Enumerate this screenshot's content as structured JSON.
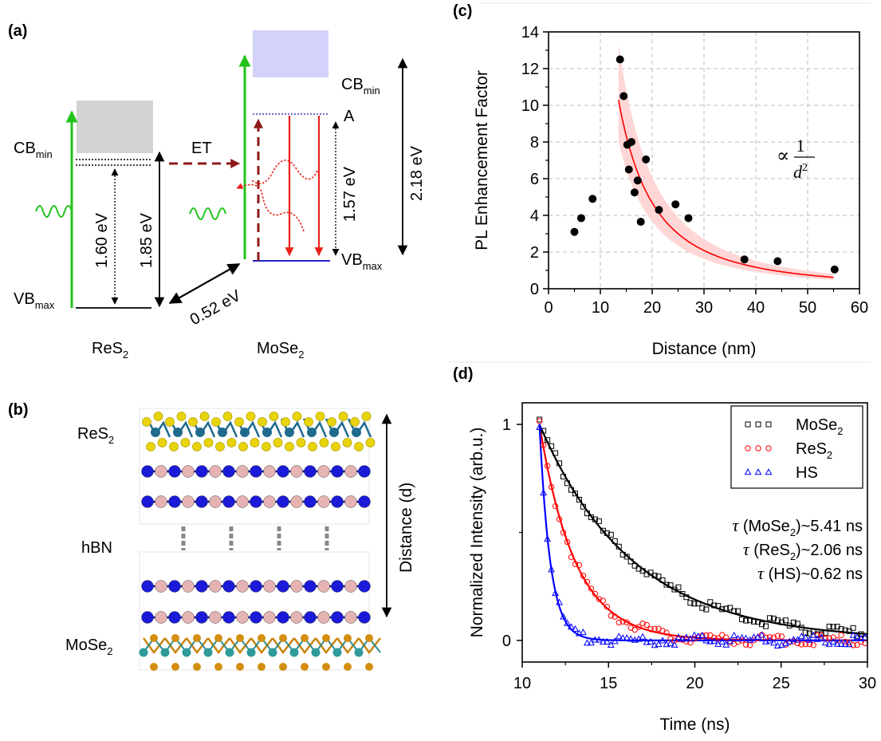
{
  "panels": {
    "a": {
      "label": "(a)",
      "cb_min_left": "CB",
      "cb_min_left_sub": "min",
      "vb_max_left": "VB",
      "vb_max_left_sub": "max",
      "et": "ET",
      "e_160": "1.60 eV",
      "e_185": "1.85 eV",
      "e_052": "0.52 eV",
      "e_157": "1.57 eV",
      "e_218": "2.18 eV",
      "a_state": "A",
      "cb_min_right": "CB",
      "cb_min_right_sub": "min",
      "vb_max_right": "VB",
      "vb_max_right_sub": "max",
      "res2_main": "ReS",
      "res2_sub": "2",
      "mose2_main": "MoSe",
      "mose2_sub": "2"
    },
    "b": {
      "label": "(b)",
      "res2_main": "ReS",
      "res2_sub": "2",
      "hbn": "hBN",
      "mose2_main": "MoSe",
      "mose2_sub": "2",
      "distance": "Distance (d)"
    },
    "c": {
      "label": "(c)"
    },
    "d": {
      "label": "(d)"
    }
  },
  "chart_data": [
    {
      "panel": "c",
      "type": "scatter",
      "xlabel": "Distance (nm)",
      "ylabel": "PL Enhancement Factor",
      "xlim": [
        0,
        60
      ],
      "ylim": [
        0,
        14
      ],
      "xticks": [
        0,
        10,
        20,
        30,
        40,
        50,
        60
      ],
      "yticks": [
        0,
        2,
        4,
        6,
        8,
        10,
        12,
        14
      ],
      "grid": true,
      "annotation": {
        "prefix": "∝",
        "numerator": "1",
        "denominator": "d",
        "exponent": "2"
      },
      "points": [
        [
          5.0,
          3.1
        ],
        [
          6.3,
          3.85
        ],
        [
          8.5,
          4.9
        ],
        [
          13.8,
          12.5
        ],
        [
          14.5,
          10.5
        ],
        [
          15.2,
          7.85
        ],
        [
          15.5,
          6.5
        ],
        [
          16.0,
          8.0
        ],
        [
          16.6,
          5.25
        ],
        [
          17.2,
          5.9
        ],
        [
          17.8,
          3.65
        ],
        [
          18.8,
          7.05
        ],
        [
          21.3,
          4.3
        ],
        [
          24.5,
          4.6
        ],
        [
          27.0,
          3.85
        ],
        [
          37.8,
          1.6
        ],
        [
          44.2,
          1.5
        ],
        [
          55.2,
          1.05
        ]
      ],
      "fit": {
        "form": "A/d^2",
        "A": 1875,
        "x_range": [
          13.5,
          55
        ],
        "color": "#ff0000"
      },
      "confidence_band": {
        "lower_factor": 0.78,
        "upper_factor": 1.3,
        "fill": "#ffd6d6"
      }
    },
    {
      "panel": "d",
      "type": "scatter",
      "xlabel": "Time (ns)",
      "ylabel": "Normalized Intensity (arb.u.)",
      "xlim": [
        10,
        30
      ],
      "ylim": [
        -0.1,
        1.1
      ],
      "xticks": [
        10,
        15,
        20,
        25,
        30
      ],
      "yticks": [
        0,
        1
      ],
      "grid": false,
      "legend": "top-right",
      "t0": 11,
      "series": [
        {
          "name": "MoSe",
          "name_sub": "2",
          "marker": "square",
          "color": "#000000",
          "tau": 5.41,
          "step": 0.23
        },
        {
          "name": "ReS",
          "name_sub": "2",
          "marker": "circle",
          "color": "#ff0000",
          "tau": 2.06,
          "step": 0.23
        },
        {
          "name": "HS",
          "name_sub": "",
          "marker": "triangle",
          "color": "#0000ff",
          "tau": 0.62,
          "step": 0.23
        }
      ],
      "tau_labels": [
        {
          "symbol": "τ",
          "open": "(MoSe",
          "sub": "2",
          "close": ")~5.41 ns"
        },
        {
          "symbol": "τ",
          "open": "(ReS",
          "sub": "2",
          "close": ")~2.06 ns"
        },
        {
          "symbol": "τ",
          "open": "(HS)~0.62 ns",
          "sub": "",
          "close": ""
        }
      ]
    }
  ]
}
